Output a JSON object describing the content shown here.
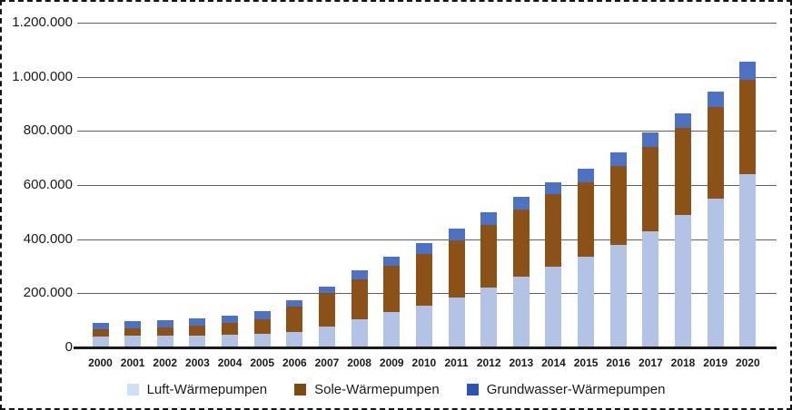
{
  "chart_data": {
    "type": "bar",
    "stacked": true,
    "title": "",
    "xlabel": "",
    "ylabel": "",
    "categories": [
      "2000",
      "2001",
      "2002",
      "2003",
      "2004",
      "2005",
      "2006",
      "2007",
      "2008",
      "2009",
      "2010",
      "2011",
      "2012",
      "2013",
      "2014",
      "2015",
      "2016",
      "2017",
      "2018",
      "2019",
      "2020"
    ],
    "series": [
      {
        "name": "Luft-Wärmepumpen",
        "bar_color": "#b2c3e6",
        "legend_color": "#cde1f6",
        "values": [
          40000,
          42000,
          44000,
          45000,
          47000,
          50000,
          56000,
          78000,
          105000,
          130000,
          153000,
          185000,
          222000,
          260000,
          300000,
          335000,
          380000,
          430000,
          490000,
          550000,
          640000
        ]
      },
      {
        "name": "Sole-Wärmepumpen",
        "bar_color": "#8b5116",
        "legend_color": "#7b4a12",
        "values": [
          28000,
          29000,
          31000,
          35000,
          43000,
          55000,
          94000,
          124000,
          146000,
          171000,
          193000,
          210000,
          232000,
          250000,
          265000,
          276000,
          290000,
          310000,
          320000,
          340000,
          350000
        ]
      },
      {
        "name": "Grundwasser-Wärmepumpen",
        "bar_color": "#4d71c3",
        "legend_color": "#2d52b3",
        "values": [
          24000,
          25000,
          26000,
          26000,
          27000,
          28000,
          26000,
          24000,
          33000,
          36000,
          41000,
          45000,
          46000,
          45000,
          45000,
          49000,
          52000,
          55000,
          55000,
          55000,
          65000
        ]
      }
    ],
    "ylim": [
      0,
      1200000
    ],
    "yticks": [
      0,
      200000,
      400000,
      600000,
      800000,
      1000000,
      1200000
    ],
    "ytick_labels": [
      "0",
      "200.000",
      "400.000",
      "600.000",
      "800.000",
      "1.000.000",
      "1.200.000"
    ],
    "grid": true,
    "legend_position": "bottom"
  },
  "colors": {
    "text": "#1a1a1a",
    "gridline": "#606060",
    "baseline": "#1a1a1a",
    "background": "#ffffff",
    "border": "#141414"
  }
}
